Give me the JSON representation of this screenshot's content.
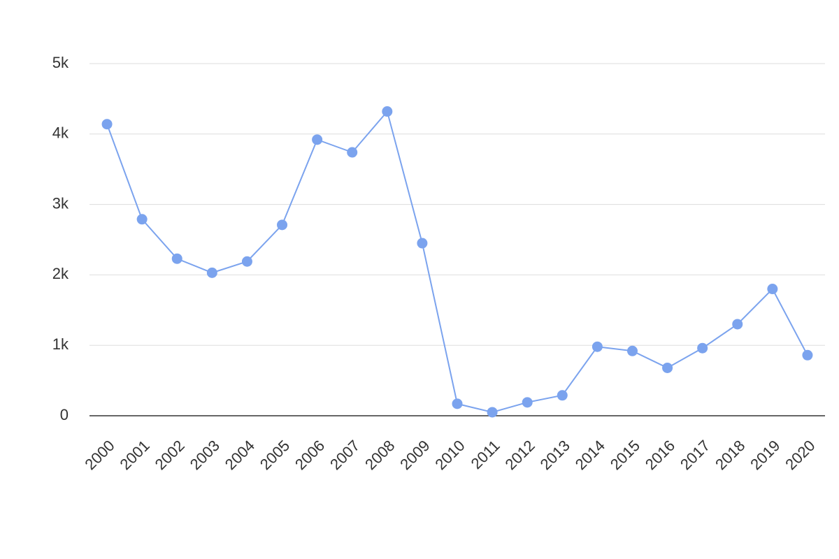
{
  "chart_data": {
    "type": "line",
    "categories": [
      "2000",
      "2001",
      "2002",
      "2003",
      "2004",
      "2005",
      "2006",
      "2007",
      "2008",
      "2009",
      "2010",
      "2011",
      "2012",
      "2013",
      "2014",
      "2015",
      "2016",
      "2017",
      "2018",
      "2019",
      "2020"
    ],
    "series": [
      {
        "color": "#7ba3ee",
        "values": [
          4140,
          2790,
          2230,
          2030,
          2190,
          2710,
          3920,
          3740,
          4320,
          2450,
          170,
          50,
          190,
          290,
          980,
          920,
          680,
          960,
          1300,
          1800,
          860
        ]
      }
    ],
    "ylim": [
      0,
      5000
    ],
    "yticks": [
      0,
      {
        "value": 1000,
        "label": "1k"
      },
      {
        "value": 2000,
        "label": "2k"
      },
      {
        "value": 3000,
        "label": "3k"
      },
      {
        "value": 4000,
        "label": "4k"
      },
      {
        "value": 5000,
        "label": "5k"
      }
    ],
    "grid": true
  }
}
